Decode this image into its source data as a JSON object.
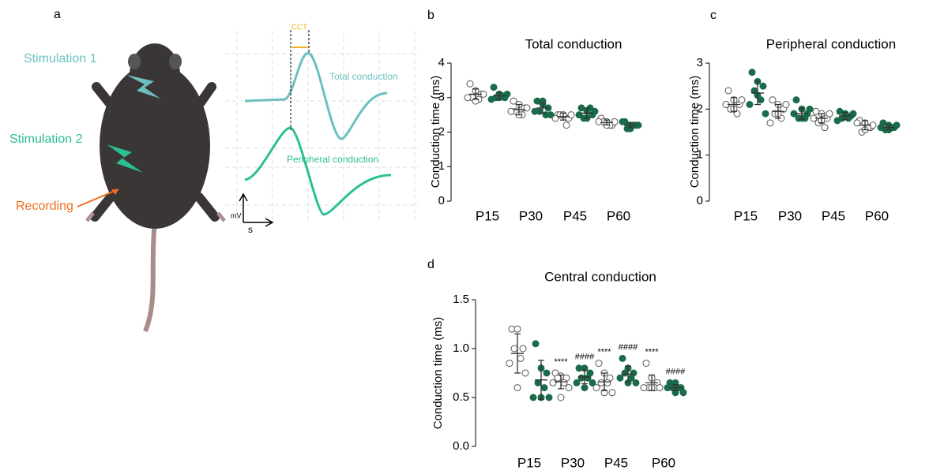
{
  "panel_labels": [
    "a",
    "b",
    "c",
    "d"
  ],
  "diagram": {
    "stimulation_1": "Stimulation 1",
    "stimulation_2": "Stimulation 2",
    "recording": "Recording",
    "cct": "CCT",
    "total_label": "Total conduction",
    "peripheral_label": "Peripheral conduction",
    "y_unit": "mV",
    "x_unit": "s"
  },
  "chart_data": [
    {
      "type": "dot",
      "title": "Total conduction",
      "y_label": "Conduction time (ms)",
      "categories": [
        "P15",
        "P30",
        "P45",
        "P60"
      ],
      "ylim": [
        0,
        4
      ],
      "yticks": [
        0,
        1,
        2,
        3,
        4
      ],
      "series": [
        {
          "color": "#ffffff",
          "values": [
            [
              3.4,
              3.2,
              3.1,
              3.0,
              2.95,
              3.0,
              3.1,
              2.9
            ],
            [
              2.9,
              2.8,
              2.7,
              2.6,
              2.5,
              2.6,
              2.7,
              2.5
            ],
            [
              2.5,
              2.5,
              2.4,
              2.5,
              2.2,
              2.4,
              2.5,
              2.5
            ],
            [
              2.4,
              2.3,
              2.2,
              2.3,
              2.2,
              2.3,
              2.3,
              2.2
            ]
          ],
          "mean": [
            3.1,
            2.65,
            2.45,
            2.28
          ],
          "sd": [
            0.15,
            0.15,
            0.1,
            0.07
          ]
        },
        {
          "color": "#1a6b4a",
          "values": [
            [
              3.3,
              3.1,
              3.0,
              3.0,
              3.05,
              2.95,
              3.1,
              3.0
            ],
            [
              2.9,
              2.9,
              2.7,
              2.6,
              2.5,
              2.6,
              2.5,
              2.8
            ],
            [
              2.7,
              2.6,
              2.5,
              2.4,
              2.7,
              2.5,
              2.6,
              2.4
            ],
            [
              2.3,
              2.2,
              2.2,
              2.1,
              2.2,
              2.3,
              2.2,
              2.1
            ]
          ],
          "mean": [
            3.05,
            2.7,
            2.55,
            2.2
          ],
          "sd": [
            0.1,
            0.15,
            0.15,
            0.07
          ]
        }
      ]
    },
    {
      "type": "dot",
      "title": "Peripheral conduction",
      "y_label": "Conduction time (ms)",
      "categories": [
        "P15",
        "P30",
        "P45",
        "P60"
      ],
      "ylim": [
        0,
        3
      ],
      "yticks": [
        0,
        1,
        2,
        3
      ],
      "series": [
        {
          "color": "#ffffff",
          "values": [
            [
              2.4,
              2.2,
              2.1,
              2.0,
              1.9,
              2.1,
              2.2,
              2.0
            ],
            [
              2.2,
              2.1,
              2.0,
              1.9,
              1.8,
              1.7,
              2.1,
              1.9
            ],
            [
              1.95,
              1.9,
              1.8,
              1.7,
              1.6,
              1.8,
              1.9,
              1.75
            ],
            [
              1.75,
              1.7,
              1.6,
              1.5,
              1.6,
              1.7,
              1.65,
              1.55
            ]
          ],
          "mean": [
            2.1,
            1.95,
            1.8,
            1.65
          ],
          "sd": [
            0.15,
            0.15,
            0.1,
            0.1
          ]
        },
        {
          "color": "#1a6b4a",
          "values": [
            [
              2.8,
              2.6,
              2.5,
              2.4,
              2.2,
              2.1,
              1.9,
              2.3
            ],
            [
              2.2,
              2.0,
              1.9,
              1.8,
              1.8,
              1.9,
              2.0,
              1.8
            ],
            [
              1.95,
              1.9,
              1.85,
              1.8,
              1.8,
              1.75,
              1.9,
              1.85
            ],
            [
              1.7,
              1.65,
              1.6,
              1.55,
              1.6,
              1.6,
              1.65,
              1.55
            ]
          ],
          "mean": [
            2.35,
            1.9,
            1.85,
            1.6
          ],
          "sd": [
            0.25,
            0.12,
            0.08,
            0.05
          ]
        }
      ]
    },
    {
      "type": "dot",
      "title": "Central conduction",
      "y_label": "Conduction time (ms)",
      "categories": [
        "P15",
        "P30",
        "P45",
        "P60"
      ],
      "ylim": [
        0,
        1.5
      ],
      "yticks": [
        {
          "value": 0,
          "label": "0.0"
        },
        0.5,
        {
          "value": 1,
          "label": "1.0"
        },
        1.5
      ],
      "series": [
        {
          "color": "#ffffff",
          "values": [
            [
              1.2,
              1.2,
              1.0,
              1.0,
              0.9,
              0.85,
              0.75,
              0.6
            ],
            [
              0.75,
              0.72,
              0.7,
              0.7,
              0.65,
              0.65,
              0.6,
              0.5
            ],
            [
              0.85,
              0.75,
              0.7,
              0.65,
              0.65,
              0.6,
              0.55,
              0.55
            ],
            [
              0.85,
              0.7,
              0.65,
              0.6,
              0.6,
              0.6,
              0.6,
              0.6
            ]
          ],
          "mean": [
            0.95,
            0.66,
            0.66,
            0.65
          ],
          "sd": [
            0.2,
            0.07,
            0.09,
            0.08
          ],
          "annotations": [
            null,
            "****",
            "****",
            "****"
          ]
        },
        {
          "color": "#1a6b4a",
          "values": [
            [
              1.05,
              0.8,
              0.75,
              0.65,
              0.6,
              0.5,
              0.5,
              0.5
            ],
            [
              0.8,
              0.8,
              0.75,
              0.7,
              0.7,
              0.65,
              0.65,
              0.6
            ],
            [
              0.9,
              0.8,
              0.75,
              0.75,
              0.7,
              0.7,
              0.65,
              0.65
            ],
            [
              0.65,
              0.65,
              0.6,
              0.6,
              0.6,
              0.6,
              0.55,
              0.55
            ]
          ],
          "mean": [
            0.68,
            0.71,
            0.74,
            0.6
          ],
          "sd": [
            0.2,
            0.07,
            0.08,
            0.03
          ],
          "annotations": [
            null,
            "####",
            "####",
            "####"
          ]
        }
      ]
    }
  ]
}
